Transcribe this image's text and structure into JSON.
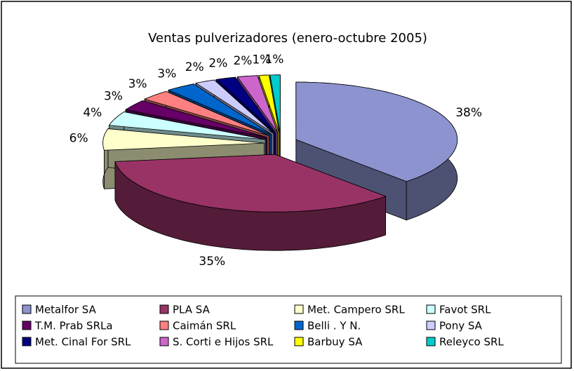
{
  "chart_data": {
    "type": "pie",
    "title": "Ventas pulverizadores (enero-octubre 2005)",
    "categories": [
      "Metalfor SA",
      "PLA SA",
      "Met. Campero SRL",
      "Favot SRL",
      "T.M. Prab SRLa",
      "Caimán SRL",
      "Belli . Y N.",
      "Pony SA",
      "Met. Cinal For SRL",
      "S. Corti e Hijos SRL",
      "Barbuy SA",
      "Releyco SRL"
    ],
    "values": [
      38,
      35,
      6,
      4,
      3,
      3,
      3,
      2,
      2,
      2,
      1,
      1
    ],
    "value_labels": [
      "38%",
      "35%",
      "6%",
      "4%",
      "3%",
      "3%",
      "3%",
      "2%",
      "2%",
      "2%",
      "1%",
      "1%"
    ],
    "colors": [
      "#8c93cf",
      "#993366",
      "#ffffcc",
      "#ccffff",
      "#660066",
      "#ff8080",
      "#0066cc",
      "#ccccff",
      "#000080",
      "#cc66cc",
      "#ffff00",
      "#00cccc"
    ],
    "legend": "bottom"
  }
}
